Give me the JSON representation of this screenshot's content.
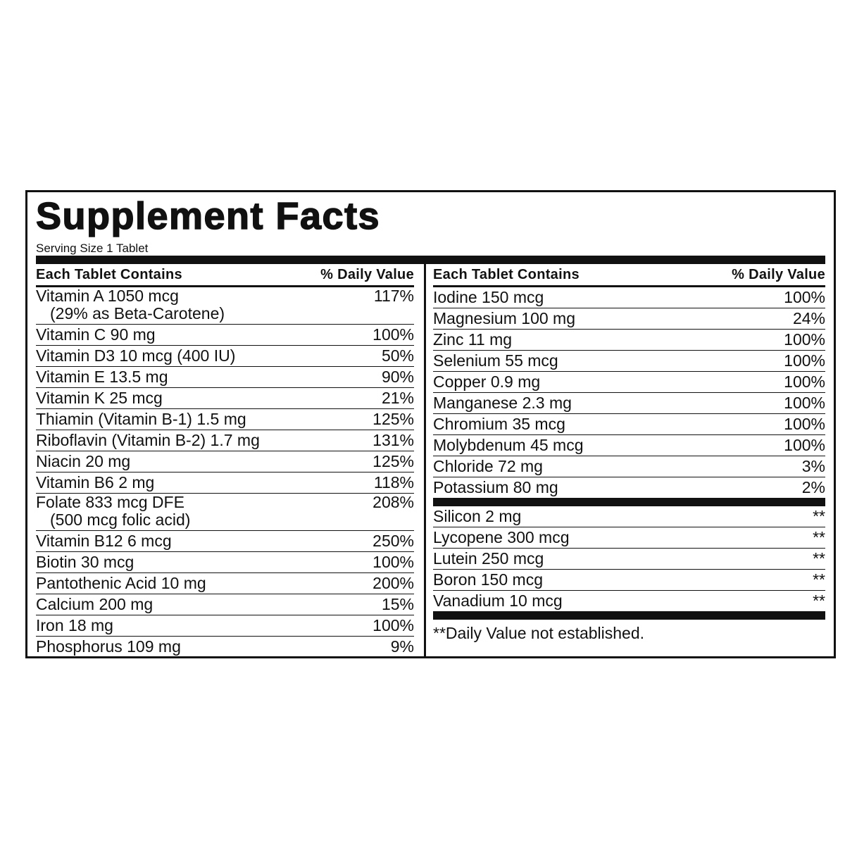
{
  "title": "Supplement Facts",
  "serving_size": "Serving Size 1 Tablet",
  "left": {
    "header": [
      "Each Tablet Contains",
      "% Daily Value"
    ],
    "rows": [
      {
        "name": "Vitamin A 1050 mcg",
        "note": "(29% as Beta-Carotene)",
        "dv": "117%"
      },
      {
        "name": "Vitamin C 90 mg",
        "dv": "100%"
      },
      {
        "name": "Vitamin D3 10 mcg (400 IU)",
        "dv": "50%"
      },
      {
        "name": "Vitamin E 13.5 mg",
        "dv": "90%"
      },
      {
        "name": "Vitamin K 25 mcg",
        "dv": "21%"
      },
      {
        "name": "Thiamin (Vitamin B-1) 1.5 mg",
        "dv": "125%"
      },
      {
        "name": "Riboflavin (Vitamin B-2) 1.7 mg",
        "dv": "131%"
      },
      {
        "name": "Niacin 20 mg",
        "dv": "125%"
      },
      {
        "name": "Vitamin B6 2 mg",
        "dv": "118%"
      },
      {
        "name": "Folate 833 mcg DFE",
        "note": "(500 mcg folic acid)",
        "dv": "208%"
      },
      {
        "name": "Vitamin B12 6 mcg",
        "dv": "250%"
      },
      {
        "name": "Biotin 30 mcg",
        "dv": "100%"
      },
      {
        "name": "Pantothenic Acid 10 mg",
        "dv": "200%"
      },
      {
        "name": "Calcium 200 mg",
        "dv": "15%"
      },
      {
        "name": "Iron 18 mg",
        "dv": "100%"
      },
      {
        "name": "Phosphorus 109 mg",
        "dv": "9%"
      }
    ]
  },
  "right": {
    "header": [
      "Each Tablet Contains",
      "% Daily Value"
    ],
    "rows": [
      {
        "name": "Iodine 150 mcg",
        "dv": "100%"
      },
      {
        "name": "Magnesium 100 mg",
        "dv": "24%"
      },
      {
        "name": "Zinc 11 mg",
        "dv": "100%"
      },
      {
        "name": "Selenium 55 mcg",
        "dv": "100%"
      },
      {
        "name": "Copper 0.9 mg",
        "dv": "100%"
      },
      {
        "name": "Manganese 2.3 mg",
        "dv": "100%"
      },
      {
        "name": "Chromium 35 mcg",
        "dv": "100%"
      },
      {
        "name": "Molybdenum 45 mcg",
        "dv": "100%"
      },
      {
        "name": "Chloride 72 mg",
        "dv": "3%"
      },
      {
        "name": "Potassium 80 mg",
        "dv": "2%"
      }
    ],
    "other_rows": [
      {
        "name": "Silicon 2 mg",
        "dv": "**"
      },
      {
        "name": "Lycopene 300 mcg",
        "dv": "**"
      },
      {
        "name": "Lutein 250 mcg",
        "dv": "**"
      },
      {
        "name": "Boron 150 mcg",
        "dv": "**"
      },
      {
        "name": "Vanadium 10 mcg",
        "dv": "**"
      }
    ],
    "footnote": "**Daily Value not established."
  }
}
